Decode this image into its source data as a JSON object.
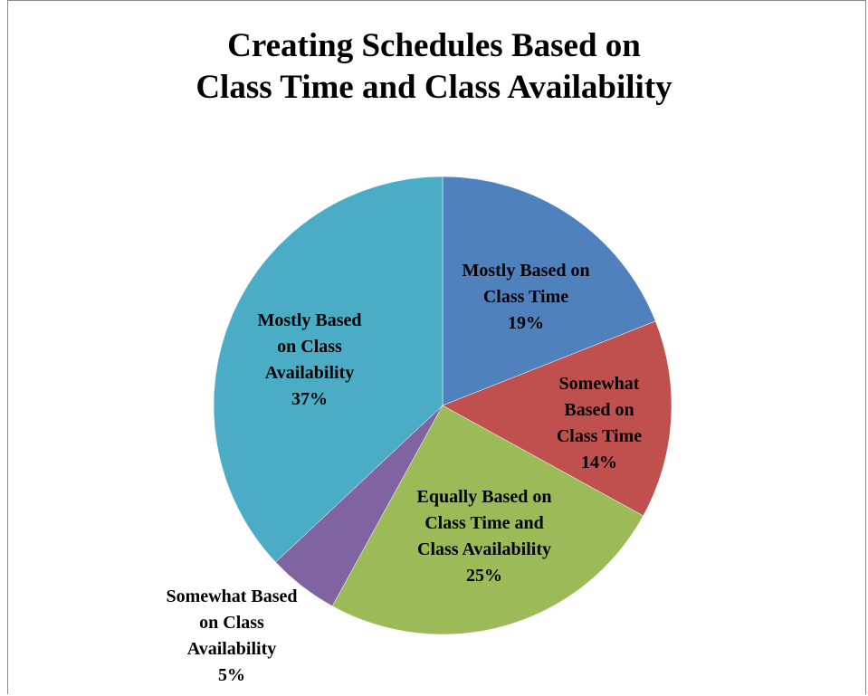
{
  "chart_data": {
    "type": "pie",
    "title": "Creating Schedules Based on\nClass Time and Class Availability",
    "categories": [
      "Mostly Based on Class Time",
      "Somewhat Based on Class Time",
      "Equally Based on Class Time and Class Availability",
      "Somewhat Based on Class Availability",
      "Mostly Based on Class Availability"
    ],
    "values": [
      19,
      14,
      25,
      5,
      37
    ],
    "value_labels": [
      "19%",
      "14%",
      "25%",
      "5%",
      "37%"
    ],
    "colors": [
      "#4f81bd",
      "#c0504d",
      "#9bbb59",
      "#8064a2",
      "#4bacc6"
    ]
  }
}
